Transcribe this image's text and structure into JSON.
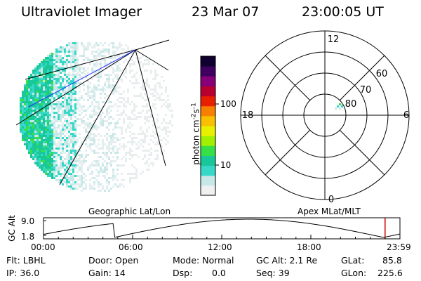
{
  "header": {
    "instrument": "Ultraviolet Imager",
    "date": "23 Mar 07",
    "time": "23:00:05 UT"
  },
  "colorbar": {
    "unit_label": "photon cm",
    "unit_sup1": "-2",
    "unit_mid": "s",
    "unit_sup2": "-1",
    "ticks": [
      {
        "label": "100",
        "value": 100
      },
      {
        "label": "10",
        "value": 10
      }
    ],
    "scale": "log",
    "colors": [
      "#f0f0f0",
      "#c8e8e8",
      "#38d8c8",
      "#18c898",
      "#38e048",
      "#a0f000",
      "#e8f000",
      "#f8c000",
      "#f88000",
      "#e82000",
      "#b80030",
      "#880078",
      "#400060",
      "#100030"
    ]
  },
  "polar_plot": {
    "mlt_labels": [
      {
        "label": "12",
        "mlt": 12
      },
      {
        "label": "18",
        "mlt": 18
      },
      {
        "label": "6",
        "mlt": 6
      },
      {
        "label": "0",
        "mlt": 0
      }
    ],
    "lat_labels": [
      {
        "label": "60",
        "mlat": 60
      },
      {
        "label": "70",
        "mlat": 70
      },
      {
        "label": "80",
        "mlat": 80
      }
    ]
  },
  "timeline": {
    "left_label": "Geographic Lat/Lon",
    "right_label": "Apex MLat/MLT",
    "axis_label": "GC Alt",
    "y_ticks": [
      {
        "label": "9.0",
        "value": 9.0
      },
      {
        "label": "1.8",
        "value": 1.8
      }
    ],
    "x_ticks": [
      {
        "label": "00:00",
        "hour": 0
      },
      {
        "label": "06:00",
        "hour": 6
      },
      {
        "label": "12:00",
        "hour": 12
      },
      {
        "label": "18:00",
        "hour": 18
      },
      {
        "label": "23:59",
        "hour": 24
      }
    ],
    "marker_hour": 23.0,
    "marker_color": "#cc0000"
  },
  "info": {
    "flt": "Flt: LBHL",
    "ip": "IP: 36.0",
    "door": "Door: Open",
    "gain": "Gain: 14",
    "mode": "Mode: Normal",
    "dsp_label": "Dsp:",
    "dsp_value": "0.0",
    "gc_alt": "GC Alt: 2.1 Re",
    "seq": "Seq: 39",
    "glat_label": "GLat:",
    "glat_value": "85.8",
    "glon_label": "GLon:",
    "glon_value": "225.6"
  }
}
